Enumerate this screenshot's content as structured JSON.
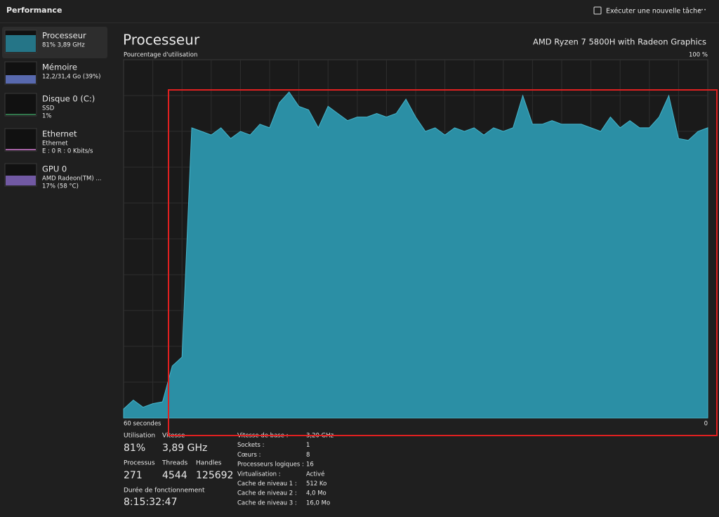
{
  "header": {
    "title": "Performance",
    "action": "Exécuter une nouvelle tâche"
  },
  "sidebar": [
    {
      "name": "Processeur",
      "detail": [
        "81% 3,89 GHz"
      ]
    },
    {
      "name": "Mémoire",
      "detail": [
        "12,2/31,4 Go (39%)"
      ]
    },
    {
      "name": "Disque 0 (C:)",
      "detail": [
        "SSD",
        "1%"
      ]
    },
    {
      "name": "Ethernet",
      "detail": [
        "Ethernet",
        "E : 0 R : 0 Kbits/s"
      ]
    },
    {
      "name": "GPU 0",
      "detail": [
        "AMD Radeon(TM) ...",
        "17% (58 °C)"
      ]
    }
  ],
  "panel": {
    "title": "Processeur",
    "model": "AMD Ryzen 7 5800H with Radeon Graphics"
  },
  "chart_data": {
    "type": "area",
    "ylabel": "Pourcentage d'utilisation",
    "x_start_label": "60 secondes",
    "x_end_label": "0",
    "ylim": [
      0,
      100
    ],
    "yticks": [
      {
        "value": 100,
        "label": "100 %"
      }
    ],
    "grid": true,
    "color": "#2b8fa5",
    "line_color": "#45b5cc",
    "values": [
      2.5,
      5,
      3,
      4,
      4.5,
      14.5,
      17,
      81,
      80,
      79,
      81,
      78,
      80,
      79,
      82,
      81,
      88,
      91,
      87,
      86,
      81,
      87,
      85,
      83,
      84,
      84,
      85,
      84,
      85,
      89,
      84,
      80,
      81,
      79,
      81,
      80,
      81,
      79,
      81,
      80,
      81,
      90,
      82,
      82,
      83,
      82,
      82,
      82,
      81,
      80,
      84,
      81,
      83,
      81,
      81,
      84,
      90,
      78,
      77.5,
      80,
      81
    ]
  },
  "stats": {
    "row1": [
      {
        "label": "Utilisation",
        "value": "81%"
      },
      {
        "label": "Vitesse",
        "value": "3,89 GHz"
      }
    ],
    "row2": [
      {
        "label": "Processus",
        "value": "271"
      },
      {
        "label": "Threads",
        "value": "4544"
      },
      {
        "label": "Handles",
        "value": "125692"
      }
    ],
    "uptime": {
      "label": "Durée de fonctionnement",
      "value": "8:15:32:47"
    },
    "specs": [
      [
        "Vitesse de base :",
        "3,20 GHz"
      ],
      [
        "Sockets :",
        "1"
      ],
      [
        "Cœurs :",
        "8"
      ],
      [
        "Processeurs logiques :",
        "16"
      ],
      [
        "Virtualisation :",
        "Activé"
      ],
      [
        "Cache de niveau 1 :",
        "512 Ko"
      ],
      [
        "Cache de niveau 2 :",
        "4,0 Mo"
      ],
      [
        "Cache de niveau 3 :",
        "16,0 Mo"
      ]
    ]
  }
}
